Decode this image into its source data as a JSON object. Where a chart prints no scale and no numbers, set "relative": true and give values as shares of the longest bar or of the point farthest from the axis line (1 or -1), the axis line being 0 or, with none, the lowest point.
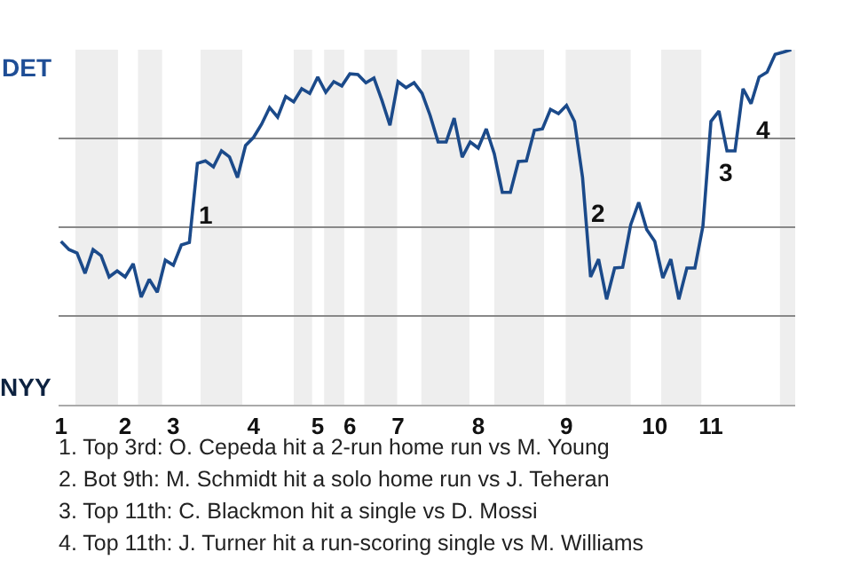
{
  "chart_data": {
    "type": "line",
    "relative": true,
    "categories": [
      "1",
      null,
      null,
      null,
      null,
      null,
      null,
      null,
      "2",
      null,
      null,
      null,
      null,
      null,
      "3",
      null,
      null,
      null,
      null,
      null,
      null,
      null,
      null,
      null,
      "4",
      null,
      null,
      null,
      null,
      null,
      null,
      null,
      "5",
      null,
      null,
      null,
      "6",
      null,
      null,
      null,
      null,
      null,
      "7",
      null,
      null,
      null,
      null,
      null,
      null,
      null,
      null,
      null,
      "8",
      null,
      null,
      null,
      null,
      null,
      null,
      null,
      null,
      null,
      null,
      "9",
      null,
      null,
      null,
      null,
      null,
      null,
      null,
      null,
      null,
      null,
      "10",
      null,
      null,
      null,
      null,
      null,
      null,
      "11",
      null,
      null,
      null,
      null,
      null,
      null,
      null,
      null,
      null,
      null
    ],
    "marker": "none",
    "line_style": "solid",
    "series": [
      {
        "color": "#1b4a8a",
        "values": [
          0.46,
          0.437,
          0.427,
          0.37,
          0.437,
          0.42,
          0.36,
          0.377,
          0.36,
          0.397,
          0.303,
          0.353,
          0.317,
          0.407,
          0.393,
          0.45,
          0.457,
          0.68,
          0.687,
          0.67,
          0.715,
          0.698,
          0.64,
          0.73,
          0.753,
          0.79,
          0.837,
          0.81,
          0.868,
          0.853,
          0.89,
          0.877,
          0.923,
          0.88,
          0.91,
          0.898,
          0.932,
          0.93,
          0.907,
          0.92,
          0.857,
          0.787,
          0.91,
          0.893,
          0.907,
          0.877,
          0.815,
          0.74,
          0.74,
          0.807,
          0.697,
          0.74,
          0.723,
          0.777,
          0.707,
          0.598,
          0.598,
          0.685,
          0.687,
          0.773,
          0.777,
          0.832,
          0.82,
          0.843,
          0.798,
          0.64,
          0.36,
          0.41,
          0.297,
          0.385,
          0.387,
          0.507,
          0.57,
          0.493,
          0.46,
          0.357,
          0.41,
          0.297,
          0.385,
          0.385,
          0.503,
          0.798,
          0.827,
          0.715,
          0.715,
          0.89,
          0.848,
          0.923,
          0.937,
          0.987,
          0.993,
          1.0
        ]
      }
    ],
    "grid": "y",
    "annotations": [
      "DET",
      "NYY",
      "1",
      "2",
      "3",
      "4",
      "1. Top 3rd: O. Cepeda hit a 2-run home run vs M. Young",
      "2. Bot 9th: M. Schmidt hit a solo home run vs J. Teheran",
      "3. Top 11th: C. Blackmon hit a single vs D. Mossi",
      "4. Top 11th: J. Turner hit a run-scoring single vs M. Williams"
    ]
  }
}
